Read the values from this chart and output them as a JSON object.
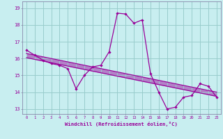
{
  "xlabel": "Windchill (Refroidissement éolien,°C)",
  "bg_color": "#c8eef0",
  "line_color": "#990099",
  "grid_color": "#99cccc",
  "spine_color": "#8888aa",
  "x_ticks": [
    0,
    1,
    2,
    3,
    4,
    5,
    6,
    7,
    8,
    9,
    10,
    11,
    12,
    13,
    14,
    15,
    16,
    17,
    18,
    19,
    20,
    21,
    22,
    23
  ],
  "y_ticks": [
    13,
    14,
    15,
    16,
    17,
    18,
    19
  ],
  "ylim": [
    12.7,
    19.4
  ],
  "xlim": [
    -0.5,
    23.5
  ],
  "curve_x": [
    0,
    1,
    2,
    3,
    4,
    5,
    6,
    7,
    8,
    9,
    10,
    11,
    12,
    13,
    14,
    15,
    16,
    17,
    18,
    19,
    20,
    21,
    22,
    23
  ],
  "curve_y": [
    16.5,
    16.2,
    15.9,
    15.7,
    15.6,
    15.4,
    14.2,
    15.0,
    15.5,
    15.6,
    16.4,
    18.7,
    18.65,
    18.1,
    18.3,
    15.1,
    14.0,
    13.0,
    13.1,
    13.7,
    13.8,
    14.5,
    14.35,
    13.7
  ],
  "trend_x0": 0,
  "trend_x1": 23,
  "trend_y0_hi": 16.3,
  "trend_y1_hi": 14.0,
  "trend_y0_lo": 16.05,
  "trend_y1_lo": 13.75
}
